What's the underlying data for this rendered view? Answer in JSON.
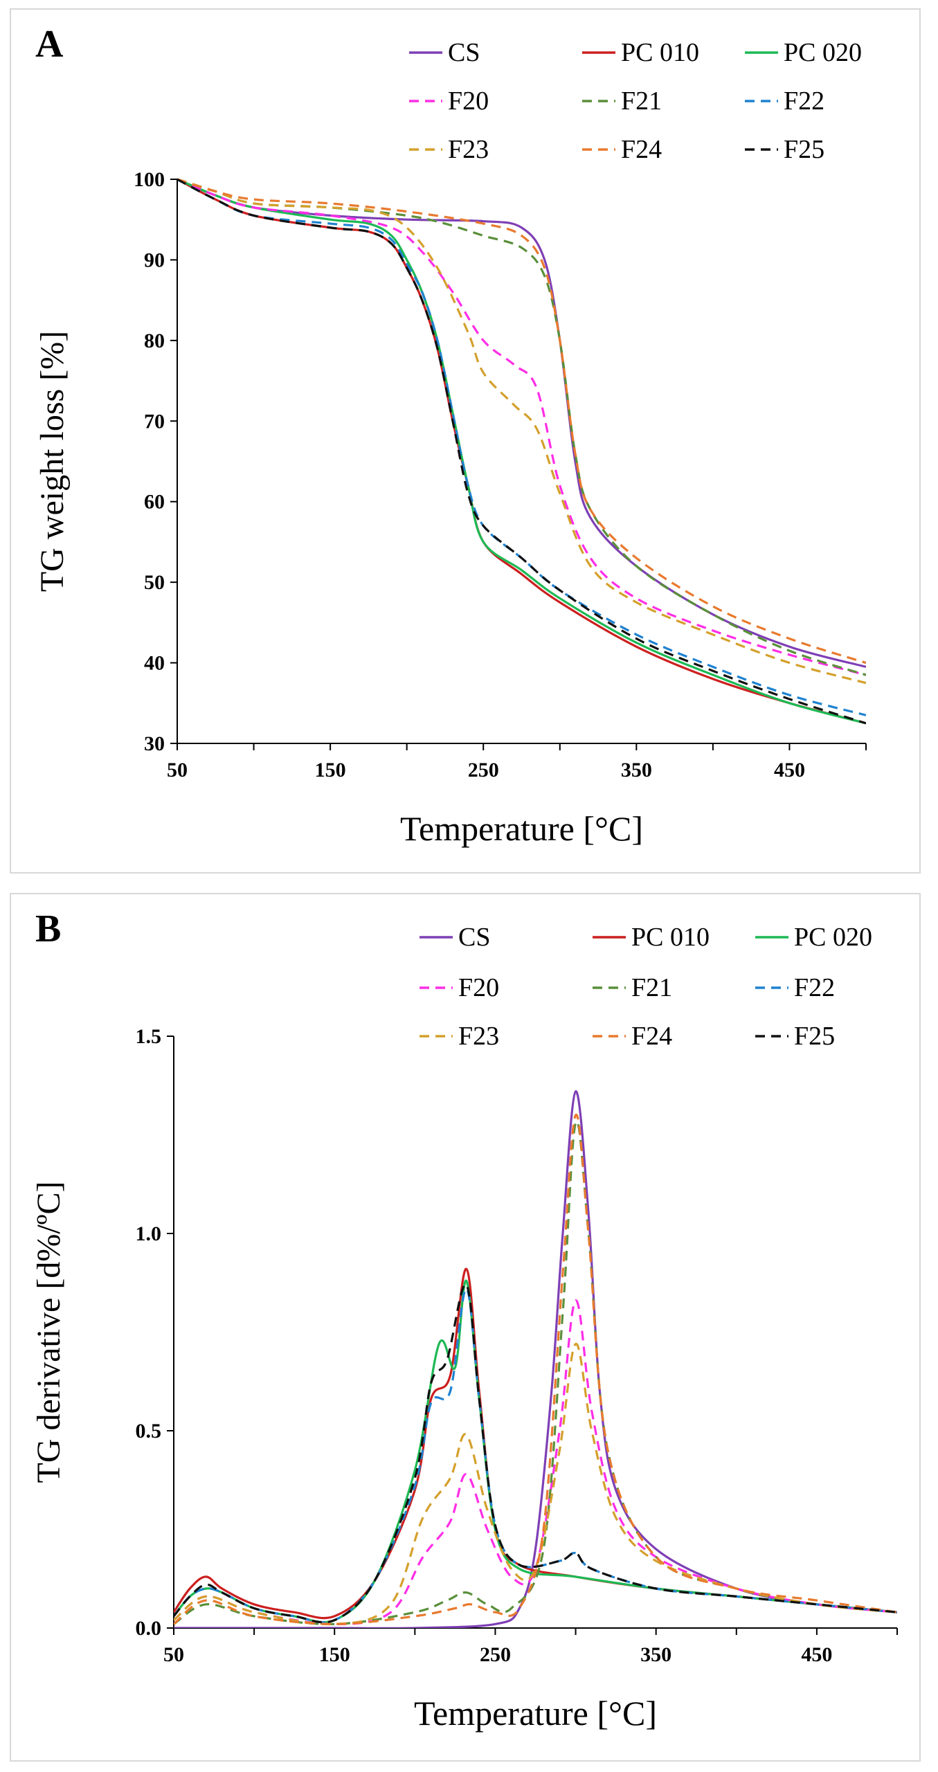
{
  "colors": {
    "CS": "#7e3fb5",
    "PC 010": "#cc1f1f",
    "PC 020": "#1db954",
    "F20": "#ff2ee6",
    "F21": "#5a8f3a",
    "F22": "#1f82d0",
    "F23": "#d4a02c",
    "F24": "#e87a2e",
    "F25": "#111111"
  },
  "styles": {
    "CS": "solid",
    "PC 010": "solid",
    "PC 020": "solid",
    "F20": "dashed",
    "F21": "dashed",
    "F22": "dashed",
    "F23": "dashed",
    "F24": "dashed",
    "F25": "dashed"
  },
  "chart_data": [
    {
      "type": "line",
      "panel_label": "A",
      "title": "",
      "xlabel": "Temperature [°C]",
      "ylabel": "TG weight loss [%]",
      "xlim": [
        50,
        500
      ],
      "ylim": [
        30,
        100
      ],
      "xticks": [
        50,
        150,
        250,
        350,
        450
      ],
      "yticks": [
        30,
        40,
        50,
        60,
        70,
        80,
        90,
        100
      ],
      "legend": [
        "CS",
        "PC 010",
        "PC 020",
        "F20",
        "F21",
        "F22",
        "F23",
        "F24",
        "F25"
      ],
      "series": [
        {
          "name": "CS",
          "x": [
            50,
            75,
            100,
            150,
            200,
            250,
            275,
            290,
            300,
            310,
            320,
            350,
            400,
            450,
            500
          ],
          "y": [
            100,
            98,
            96.5,
            95.5,
            95,
            94.8,
            94,
            90,
            80,
            65,
            58,
            52,
            46,
            42,
            39.5
          ]
        },
        {
          "name": "PC 010",
          "x": [
            50,
            75,
            100,
            150,
            175,
            190,
            200,
            210,
            220,
            230,
            240,
            250,
            275,
            300,
            350,
            400,
            450,
            500
          ],
          "y": [
            100,
            97.5,
            95.5,
            94,
            93.5,
            92,
            89,
            85,
            79,
            70,
            62,
            55,
            51,
            47.5,
            42,
            38,
            35,
            32.5
          ]
        },
        {
          "name": "PC 020",
          "x": [
            50,
            75,
            100,
            150,
            175,
            190,
            200,
            210,
            220,
            230,
            240,
            250,
            275,
            300,
            350,
            400,
            450,
            500
          ],
          "y": [
            100,
            98,
            96.5,
            95,
            94.5,
            93,
            90,
            86,
            80,
            71,
            62,
            55,
            51.5,
            48,
            42.5,
            38.5,
            35,
            32.5
          ]
        },
        {
          "name": "F20",
          "x": [
            50,
            75,
            100,
            150,
            190,
            210,
            230,
            250,
            270,
            285,
            300,
            320,
            350,
            400,
            450,
            500
          ],
          "y": [
            100,
            98,
            96.5,
            95.5,
            94,
            91,
            86,
            80,
            77,
            74,
            62,
            53,
            48,
            44,
            41,
            38.5
          ]
        },
        {
          "name": "F21",
          "x": [
            50,
            75,
            100,
            150,
            200,
            225,
            250,
            275,
            290,
            300,
            310,
            320,
            350,
            400,
            450,
            500
          ],
          "y": [
            100,
            98.5,
            97,
            96.5,
            95.5,
            94.5,
            93,
            91.5,
            88,
            80,
            66,
            59,
            52,
            46,
            41.5,
            38.5
          ]
        },
        {
          "name": "F22",
          "x": [
            50,
            75,
            100,
            150,
            175,
            190,
            200,
            210,
            220,
            230,
            240,
            250,
            275,
            300,
            350,
            400,
            450,
            500
          ],
          "y": [
            100,
            97.5,
            95.5,
            94.5,
            94,
            92.5,
            89.5,
            86,
            80,
            71,
            62,
            57,
            53,
            49,
            43.5,
            39.5,
            36,
            33.5
          ]
        },
        {
          "name": "F23",
          "x": [
            50,
            75,
            100,
            150,
            180,
            200,
            220,
            240,
            250,
            270,
            285,
            300,
            320,
            350,
            400,
            450,
            500
          ],
          "y": [
            100,
            98.5,
            97,
            96.5,
            96,
            94,
            89,
            81,
            76,
            72,
            69,
            61,
            52,
            47.5,
            43.5,
            40,
            37.5
          ]
        },
        {
          "name": "F24",
          "x": [
            50,
            75,
            100,
            150,
            200,
            250,
            275,
            290,
            300,
            310,
            320,
            350,
            400,
            450,
            500
          ],
          "y": [
            100,
            98.5,
            97.5,
            97,
            96,
            94.5,
            93,
            89,
            80,
            66,
            59,
            53,
            47,
            43,
            40
          ]
        },
        {
          "name": "F25",
          "x": [
            50,
            75,
            100,
            150,
            175,
            190,
            200,
            210,
            220,
            230,
            240,
            250,
            275,
            300,
            350,
            400,
            450,
            500
          ],
          "y": [
            100,
            97.5,
            95.5,
            94,
            93.5,
            92,
            89,
            85,
            79,
            70,
            61,
            57,
            53,
            49,
            43,
            39,
            35.5,
            32.5
          ]
        }
      ]
    },
    {
      "type": "line",
      "panel_label": "B",
      "title": "",
      "xlabel": "Temperature [°C]",
      "ylabel": "TG derivative [d%/ºC]",
      "xlim": [
        50,
        500
      ],
      "ylim": [
        0,
        1.5
      ],
      "xticks": [
        50,
        150,
        250,
        350,
        450
      ],
      "yticks": [
        0.0,
        0.5,
        1.0,
        1.5
      ],
      "ytick_labels": [
        "0.0",
        "0.5",
        "1.0",
        "1.5"
      ],
      "legend": [
        "CS",
        "PC 010",
        "PC 020",
        "F20",
        "F21",
        "F22",
        "F23",
        "F24",
        "F25"
      ],
      "series": [
        {
          "name": "CS",
          "x": [
            50,
            100,
            150,
            200,
            250,
            265,
            275,
            285,
            292,
            300,
            308,
            315,
            325,
            350,
            400,
            450,
            500
          ],
          "y": [
            0,
            0,
            0,
            0,
            0.01,
            0.05,
            0.2,
            0.6,
            1.0,
            1.36,
            1.05,
            0.6,
            0.35,
            0.2,
            0.1,
            0.06,
            0.04
          ]
        },
        {
          "name": "PC 010",
          "x": [
            50,
            60,
            70,
            80,
            100,
            125,
            150,
            175,
            200,
            210,
            222,
            232,
            240,
            250,
            265,
            300,
            350,
            400,
            450,
            500
          ],
          "y": [
            0.04,
            0.1,
            0.13,
            0.1,
            0.06,
            0.04,
            0.03,
            0.12,
            0.35,
            0.58,
            0.64,
            0.91,
            0.6,
            0.25,
            0.16,
            0.13,
            0.1,
            0.08,
            0.06,
            0.04
          ]
        },
        {
          "name": "PC 020",
          "x": [
            50,
            60,
            70,
            80,
            100,
            125,
            150,
            175,
            200,
            215,
            225,
            232,
            240,
            250,
            265,
            300,
            350,
            400,
            450,
            500
          ],
          "y": [
            0.03,
            0.08,
            0.1,
            0.09,
            0.05,
            0.03,
            0.02,
            0.12,
            0.4,
            0.72,
            0.66,
            0.88,
            0.58,
            0.25,
            0.15,
            0.13,
            0.1,
            0.08,
            0.06,
            0.04
          ]
        },
        {
          "name": "F20",
          "x": [
            50,
            70,
            100,
            150,
            185,
            205,
            222,
            232,
            245,
            260,
            275,
            290,
            300,
            310,
            325,
            350,
            400,
            450,
            500
          ],
          "y": [
            0.02,
            0.08,
            0.04,
            0.01,
            0.04,
            0.18,
            0.27,
            0.39,
            0.25,
            0.13,
            0.15,
            0.5,
            0.83,
            0.55,
            0.3,
            0.18,
            0.1,
            0.06,
            0.04
          ]
        },
        {
          "name": "F21",
          "x": [
            50,
            70,
            100,
            150,
            200,
            220,
            232,
            245,
            260,
            280,
            292,
            300,
            308,
            320,
            350,
            400,
            450,
            500
          ],
          "y": [
            0.01,
            0.06,
            0.03,
            0.01,
            0.04,
            0.07,
            0.09,
            0.06,
            0.05,
            0.2,
            0.8,
            1.28,
            1.0,
            0.45,
            0.18,
            0.1,
            0.06,
            0.04
          ]
        },
        {
          "name": "F22",
          "x": [
            50,
            60,
            70,
            80,
            100,
            125,
            150,
            175,
            200,
            210,
            222,
            232,
            240,
            250,
            265,
            290,
            300,
            310,
            350,
            400,
            450,
            500
          ],
          "y": [
            0.03,
            0.08,
            0.1,
            0.09,
            0.05,
            0.03,
            0.02,
            0.12,
            0.36,
            0.57,
            0.6,
            0.86,
            0.58,
            0.26,
            0.16,
            0.17,
            0.19,
            0.15,
            0.1,
            0.08,
            0.06,
            0.04
          ]
        },
        {
          "name": "F23",
          "x": [
            50,
            70,
            100,
            150,
            185,
            205,
            222,
            232,
            245,
            260,
            275,
            290,
            300,
            310,
            325,
            350,
            400,
            450,
            500
          ],
          "y": [
            0.02,
            0.08,
            0.04,
            0.01,
            0.06,
            0.28,
            0.38,
            0.49,
            0.3,
            0.15,
            0.15,
            0.45,
            0.72,
            0.5,
            0.28,
            0.17,
            0.1,
            0.06,
            0.04
          ]
        },
        {
          "name": "F24",
          "x": [
            50,
            70,
            100,
            150,
            200,
            225,
            235,
            250,
            265,
            280,
            292,
            300,
            308,
            320,
            350,
            400,
            450,
            500
          ],
          "y": [
            0.01,
            0.07,
            0.03,
            0.01,
            0.03,
            0.05,
            0.06,
            0.04,
            0.05,
            0.25,
            0.9,
            1.3,
            1.0,
            0.45,
            0.18,
            0.1,
            0.07,
            0.04
          ]
        },
        {
          "name": "F25",
          "x": [
            50,
            60,
            70,
            80,
            100,
            125,
            150,
            175,
            200,
            210,
            220,
            232,
            240,
            250,
            265,
            290,
            300,
            310,
            350,
            400,
            450,
            500
          ],
          "y": [
            0.03,
            0.08,
            0.11,
            0.09,
            0.05,
            0.03,
            0.02,
            0.12,
            0.38,
            0.62,
            0.68,
            0.87,
            0.58,
            0.26,
            0.16,
            0.17,
            0.19,
            0.15,
            0.1,
            0.08,
            0.06,
            0.04
          ]
        }
      ]
    }
  ]
}
